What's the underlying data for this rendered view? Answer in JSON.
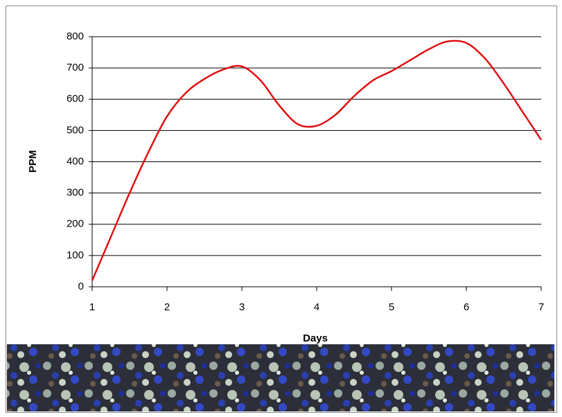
{
  "chart_data": {
    "type": "line",
    "x_label": "Days",
    "y_label": "PPM",
    "x": [
      1,
      1.25,
      1.5,
      1.75,
      2,
      2.25,
      2.5,
      2.75,
      3,
      3.25,
      3.5,
      3.75,
      4,
      4.25,
      4.5,
      4.75,
      5,
      5.25,
      5.5,
      5.75,
      6,
      6.25,
      6.5,
      6.75,
      7
    ],
    "series": [
      {
        "name": "PPM",
        "color": "#e01010",
        "values": [
          20,
          160,
          300,
          430,
          545,
          620,
          665,
          695,
          705,
          660,
          580,
          520,
          515,
          550,
          610,
          660,
          690,
          725,
          760,
          785,
          780,
          730,
          650,
          560,
          470
        ]
      }
    ],
    "xlim": [
      1,
      7
    ],
    "xticks": [
      1,
      2,
      3,
      4,
      5,
      6,
      7
    ],
    "ylim": [
      0,
      800
    ],
    "yticks": [
      0,
      100,
      200,
      300,
      400,
      500,
      600,
      700,
      800
    ],
    "grid": true
  }
}
